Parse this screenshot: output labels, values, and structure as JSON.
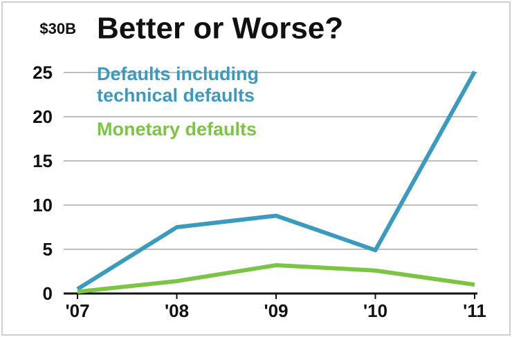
{
  "chart_data": {
    "type": "line",
    "title": "Better or Worse?",
    "categories": [
      "'07",
      "'08",
      "'09",
      "'10",
      "'11"
    ],
    "series": [
      {
        "name": "Defaults including technical defaults",
        "color": "#3a9bbf",
        "values": [
          0.5,
          7.5,
          8.8,
          4.9,
          25.1
        ]
      },
      {
        "name": "Monetary defaults",
        "color": "#7cc443",
        "values": [
          0.2,
          1.4,
          3.2,
          2.6,
          1.0
        ]
      }
    ],
    "ylim": [
      0,
      30
    ],
    "yticks": [
      0,
      5,
      10,
      15,
      20,
      25,
      {
        "value": 30,
        "label": "$30B"
      }
    ],
    "grid": true
  }
}
